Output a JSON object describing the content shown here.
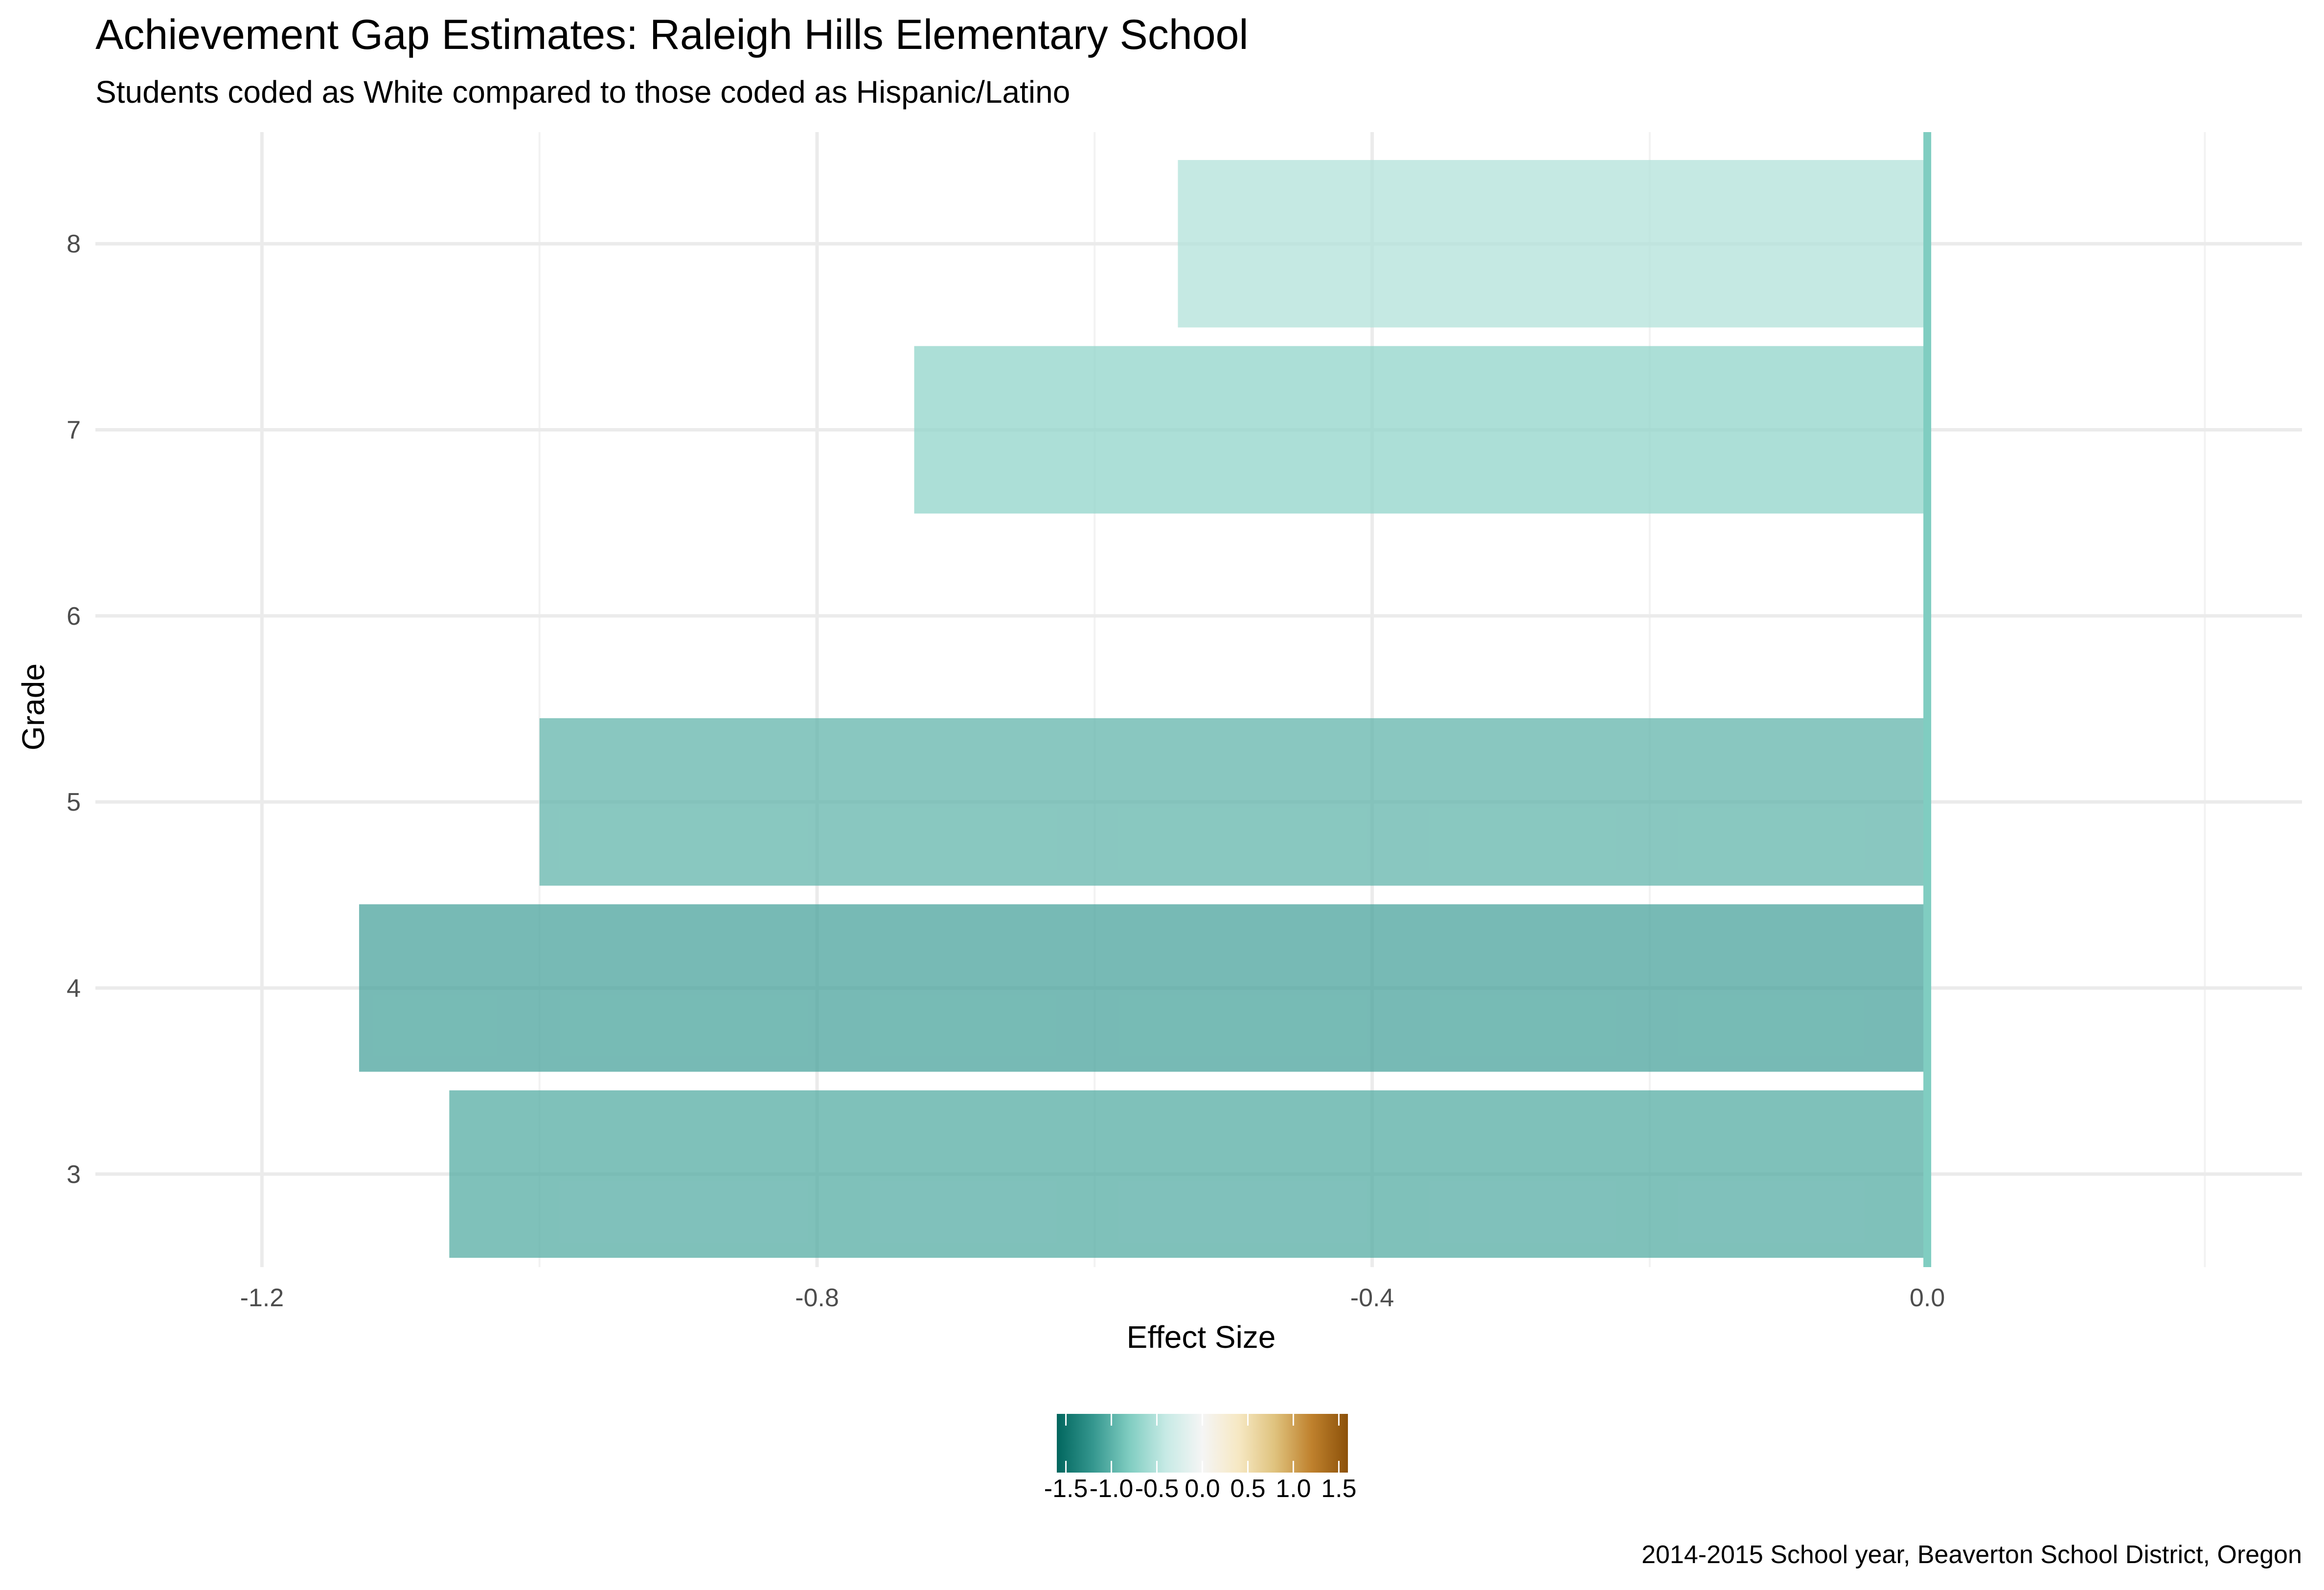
{
  "chart_data": {
    "type": "bar",
    "orientation": "horizontal",
    "title": "Achievement Gap Estimates: Raleigh Hills Elementary School",
    "subtitle": "Students coded as White compared to those coded as Hispanic/Latino",
    "xlabel": "Effect Size",
    "ylabel": "Grade",
    "caption": "2014-2015 School year, Beaverton School District, Oregon",
    "xlim": [
      -1.32,
      0.27
    ],
    "ylim": [
      2.5,
      8.6
    ],
    "x_ticks": [
      {
        "value": -1.2,
        "label": "-1.2"
      },
      {
        "value": -0.8,
        "label": "-0.8"
      },
      {
        "value": -0.4,
        "label": "-0.4"
      },
      {
        "value": 0.0,
        "label": "0.0"
      }
    ],
    "x_minor_ticks": [
      -1.0,
      -0.6,
      -0.2,
      0.2
    ],
    "y_ticks": [
      {
        "value": 3,
        "label": "3"
      },
      {
        "value": 4,
        "label": "4"
      },
      {
        "value": 5,
        "label": "5"
      },
      {
        "value": 6,
        "label": "6"
      },
      {
        "value": 7,
        "label": "7"
      },
      {
        "value": 8,
        "label": "8"
      }
    ],
    "categories": [
      "3",
      "4",
      "5",
      "7",
      "8"
    ],
    "bars": [
      {
        "grade": 3,
        "value": -1.065
      },
      {
        "grade": 4,
        "value": -1.13
      },
      {
        "grade": 5,
        "value": -1.0
      },
      {
        "grade": 7,
        "value": -0.73
      },
      {
        "grade": 8,
        "value": -0.54
      }
    ],
    "bar_opacity": 0.72,
    "zero_line_color": "#80cdc1",
    "grid": true,
    "legend": {
      "type": "colorbar",
      "placement": "bottom",
      "range": [
        -1.6,
        1.6
      ],
      "ticks": [
        {
          "value": -1.5,
          "label": "-1.5"
        },
        {
          "value": -1.0,
          "label": "-1.0"
        },
        {
          "value": -0.5,
          "label": "-0.5"
        },
        {
          "value": 0.0,
          "label": "0.0"
        },
        {
          "value": 0.5,
          "label": "0.5"
        },
        {
          "value": 1.0,
          "label": "1.0"
        },
        {
          "value": 1.5,
          "label": "1.5"
        }
      ],
      "palette": [
        "#01665e",
        "#35978f",
        "#80cdc1",
        "#c7eae5",
        "#f5f5f5",
        "#f6e8c3",
        "#dfc27d",
        "#bf812d",
        "#8c510a"
      ]
    }
  }
}
